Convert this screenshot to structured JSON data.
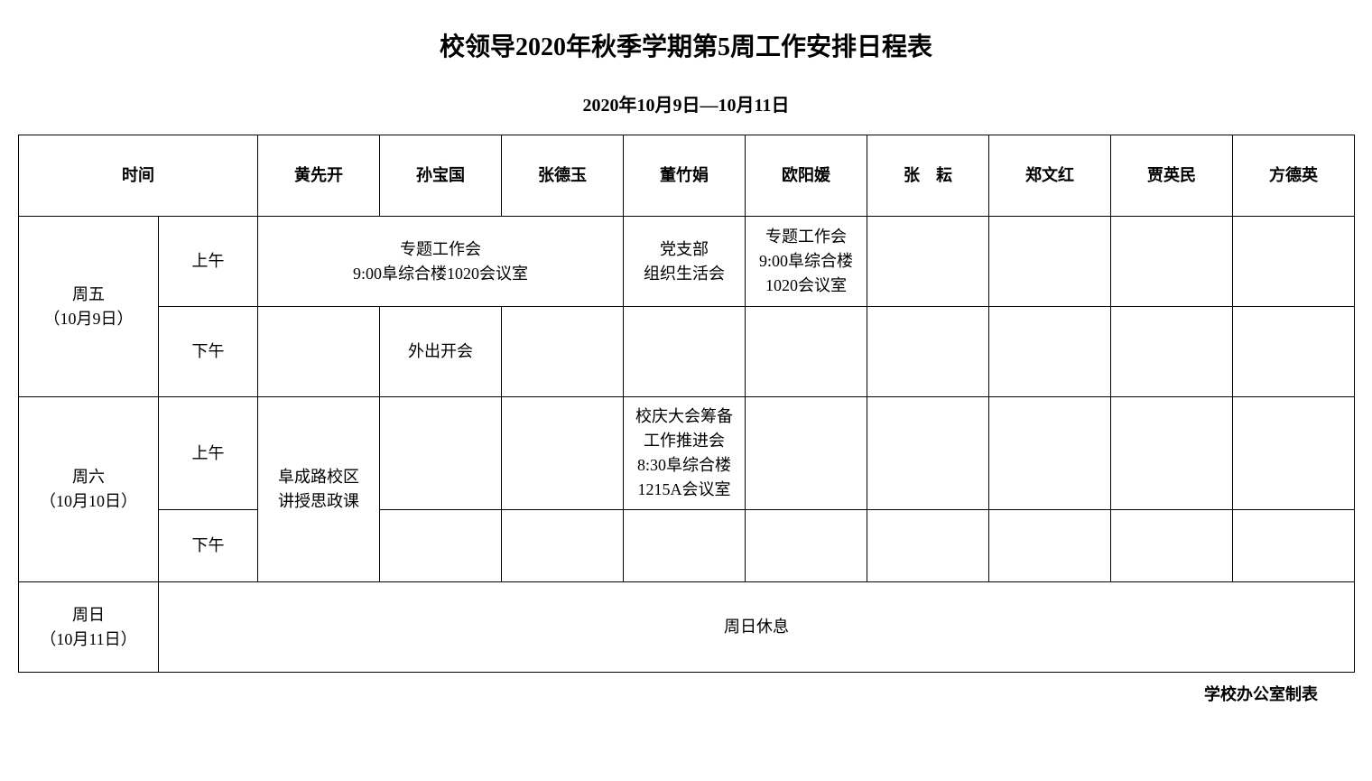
{
  "title": "校领导2020年秋季学期第5周工作安排日程表",
  "subtitle": "2020年10月9日—10月11日",
  "footer": "学校办公室制表",
  "headers": {
    "time": "时间",
    "leaders": [
      "黄先开",
      "孙宝国",
      "张德玉",
      "董竹娟",
      "欧阳媛",
      "张　耘",
      "郑文红",
      "贾英民",
      "方德英"
    ]
  },
  "days": {
    "fri": {
      "label": "周五\n（10月9日）",
      "am": "上午",
      "pm": "下午"
    },
    "sat": {
      "label": "周六\n（10月10日）",
      "am": "上午",
      "pm": "下午"
    },
    "sun": {
      "label": "周日\n（10月11日）"
    }
  },
  "cells": {
    "fri_am_merged": "专题工作会\n9:00阜综合楼1020会议室",
    "fri_am_dong": "党支部\n组织生活会",
    "fri_am_ouyang": "专题工作会\n9:00阜综合楼\n1020会议室",
    "fri_pm_sun": "外出开会",
    "sat_huang_merged": "阜成路校区\n讲授思政课",
    "sat_am_dong": "校庆大会筹备\n工作推进会\n8:30阜综合楼\n1215A会议室",
    "sun_rest": "周日休息"
  },
  "style": {
    "background_color": "#ffffff",
    "text_color": "#000000",
    "border_color": "#000000",
    "title_fontsize": 28,
    "subtitle_fontsize": 20,
    "cell_fontsize": 18,
    "border_width": 1.5,
    "day_col_width": 155,
    "period_col_width": 110,
    "leader_col_width": 135
  }
}
